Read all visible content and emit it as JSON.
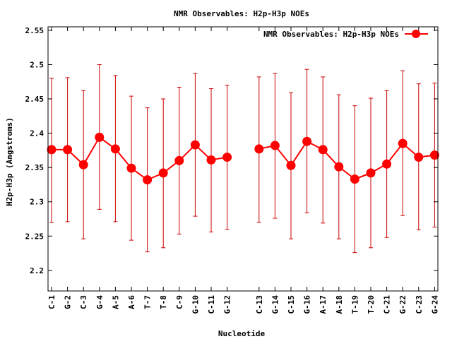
{
  "chart_data": {
    "type": "line",
    "title": "NMR Observables: H2p-H3p NOEs",
    "xlabel": "Nucleotide",
    "ylabel": "H2p-H3p (Angstroms)",
    "ylim": [
      2.17,
      2.555
    ],
    "yticks": [
      2.2,
      2.25,
      2.3,
      2.35,
      2.4,
      2.45,
      2.5,
      2.55
    ],
    "grid": false,
    "legend_position": "top-right",
    "series_color": "#ff0000",
    "errorbar_color": "#cc0000",
    "categories": [
      "C-1",
      "G-2",
      "C-3",
      "G-4",
      "A-5",
      "A-6",
      "T-7",
      "T-8",
      "C-9",
      "G-10",
      "C-11",
      "G-12",
      "C-13",
      "G-14",
      "C-15",
      "G-16",
      "A-17",
      "A-18",
      "T-19",
      "T-20",
      "C-21",
      "G-22",
      "C-23",
      "G-24"
    ],
    "series": [
      {
        "name": "NMR Observables: H2p-H3p NOEs",
        "segments": [
          [
            0,
            11
          ],
          [
            12,
            23
          ]
        ],
        "values": [
          2.376,
          2.376,
          2.354,
          2.394,
          2.377,
          2.349,
          2.332,
          2.342,
          2.36,
          2.383,
          2.361,
          2.365,
          2.377,
          2.382,
          2.353,
          2.388,
          2.376,
          2.351,
          2.333,
          2.342,
          2.355,
          2.385,
          2.365,
          2.368
        ],
        "err_low": [
          2.27,
          2.271,
          2.246,
          2.289,
          2.271,
          2.244,
          2.227,
          2.233,
          2.253,
          2.279,
          2.256,
          2.26,
          2.27,
          2.276,
          2.246,
          2.284,
          2.269,
          2.246,
          2.226,
          2.233,
          2.248,
          2.28,
          2.259,
          2.263
        ],
        "err_high": [
          2.48,
          2.481,
          2.462,
          2.5,
          2.484,
          2.454,
          2.437,
          2.45,
          2.467,
          2.487,
          2.465,
          2.47,
          2.482,
          2.487,
          2.459,
          2.493,
          2.482,
          2.456,
          2.44,
          2.451,
          2.462,
          2.491,
          2.472,
          2.473
        ]
      }
    ]
  }
}
